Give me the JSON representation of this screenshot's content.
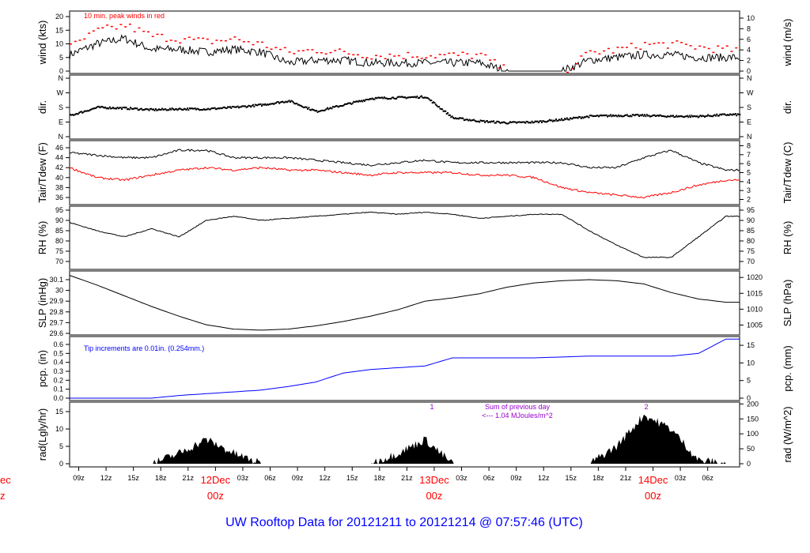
{
  "title": "UW Rooftop Data for 20121211  to  20121214 @ 07:57:46  (UTC)",
  "chart_data": [
    {
      "type": "line",
      "ylabel": "wind (kts)",
      "ylabel_right": "wind (m/s)",
      "ylim": [
        0,
        20
      ],
      "yticks": [
        0,
        5,
        10,
        15,
        20
      ],
      "yticks_right": [
        0,
        2,
        4,
        6,
        8,
        10
      ],
      "annotation": "10 min. peak winds in red",
      "series": [
        {
          "values": [
            6,
            10,
            12,
            8,
            8,
            7,
            8,
            7,
            3,
            4,
            4,
            3,
            3,
            3,
            3,
            3,
            0,
            0,
            0,
            4,
            5,
            6,
            6,
            5,
            5
          ],
          "color": "#000000"
        },
        {
          "values": [
            9,
            15,
            17,
            13,
            12,
            11,
            12,
            10,
            7,
            8,
            7,
            6,
            6,
            6,
            6,
            6,
            0,
            0,
            0,
            7,
            8,
            10,
            10,
            9,
            8
          ],
          "color": "#ff0000",
          "style": "points"
        }
      ]
    },
    {
      "type": "scatter",
      "ylabel": "dir.",
      "ylabel_right": "dir.",
      "yticks": [
        "N",
        "E",
        "S",
        "W",
        "N"
      ],
      "ylim": [
        0,
        360
      ],
      "series": [
        {
          "values": [
            135,
            185,
            180,
            170,
            175,
            175,
            185,
            200,
            225,
            160,
            200,
            240,
            245,
            250,
            120,
            100,
            90,
            95,
            110,
            130,
            135,
            135,
            130,
            130,
            140
          ],
          "color": "#000000"
        }
      ]
    },
    {
      "type": "line",
      "ylabel": "Tair/Tdew (F)",
      "ylabel_right": "Tair/Tdew (C)",
      "ylim": [
        36,
        46
      ],
      "yticks": [
        36,
        38,
        40,
        42,
        44,
        46
      ],
      "yticks_right": [
        2,
        3,
        4,
        5,
        6,
        7,
        8
      ],
      "series": [
        {
          "values": [
            45,
            44.5,
            44,
            44,
            45.5,
            45.5,
            44,
            44,
            44,
            43.5,
            43,
            42.5,
            43,
            43.5,
            43,
            43,
            43,
            43,
            43,
            42,
            42,
            44,
            45.5,
            43,
            41.5
          ],
          "color": "#000000"
        },
        {
          "values": [
            42,
            40,
            39.5,
            40.5,
            41.5,
            42,
            41.5,
            42,
            41.5,
            41.5,
            41,
            40.5,
            41,
            41,
            41,
            40.5,
            40.5,
            40,
            38,
            37,
            36.5,
            36,
            37,
            38.5,
            39.5
          ],
          "color": "#ff0000"
        }
      ]
    },
    {
      "type": "line",
      "ylabel": "RH (%)",
      "ylabel_right": "RH (%)",
      "ylim": [
        70,
        95
      ],
      "yticks": [
        70,
        75,
        80,
        85,
        90,
        95
      ],
      "yticks_right": [
        70,
        75,
        80,
        85,
        90,
        95
      ],
      "series": [
        {
          "values": [
            89,
            85,
            82,
            86,
            82,
            90,
            92,
            90,
            91,
            92,
            93,
            94,
            93,
            94,
            93,
            91,
            92,
            93,
            93,
            85,
            78,
            72,
            72,
            82,
            92
          ],
          "color": "#000000"
        }
      ]
    },
    {
      "type": "line",
      "ylabel": "SLP (inHg)",
      "ylabel_right": "SLP (hPa)",
      "ylim": [
        29.6,
        30.1
      ],
      "yticks": [
        29.6,
        29.7,
        29.8,
        29.9,
        30.0,
        30.1
      ],
      "yticks_right": [
        1005,
        1010,
        1015,
        1020
      ],
      "series": [
        {
          "values": [
            30.14,
            30.05,
            29.95,
            29.85,
            29.76,
            29.68,
            29.64,
            29.63,
            29.64,
            29.67,
            29.71,
            29.76,
            29.82,
            29.9,
            29.93,
            29.97,
            30.03,
            30.07,
            30.09,
            30.1,
            30.09,
            30.06,
            29.98,
            29.92,
            29.89
          ],
          "color": "#000000"
        }
      ]
    },
    {
      "type": "line",
      "ylabel": "pcp. (in)",
      "ylabel_right": "pcp. (mm)",
      "ylim": [
        0,
        0.6
      ],
      "yticks": [
        "0.0",
        "0.1",
        "0.2",
        "0.3",
        "0.4",
        "0.5",
        "0.6"
      ],
      "yticks_right": [
        0,
        5,
        10,
        15
      ],
      "annotation": "Tip increments are 0.01in. (0.254mm.)",
      "series": [
        {
          "values": [
            0,
            0,
            0,
            0,
            0.03,
            0.05,
            0.07,
            0.09,
            0.13,
            0.18,
            0.28,
            0.32,
            0.34,
            0.36,
            0.45,
            0.45,
            0.45,
            0.45,
            0.46,
            0.47,
            0.47,
            0.47,
            0.47,
            0.5,
            0.66
          ],
          "color": "#0000ff"
        }
      ]
    },
    {
      "type": "area",
      "ylabel": "rad(Lgly/hr)",
      "ylabel_right": "rad (W/m^2)",
      "ylim": [
        0,
        15
      ],
      "yticks": [
        0,
        5,
        10,
        15
      ],
      "yticks_right": [
        0,
        50,
        100,
        150,
        200
      ],
      "annotations": [
        "Sum of previous day",
        "<--- 1.04 MJoules/m^2",
        "1",
        "2"
      ],
      "series": [
        {
          "values": [
            0,
            0,
            0,
            0,
            3,
            7,
            3,
            0,
            0,
            0,
            0,
            0,
            3,
            7,
            0,
            0,
            0,
            0,
            0,
            0,
            5,
            14,
            10,
            1,
            0
          ],
          "color": "#000000"
        }
      ]
    }
  ],
  "x": {
    "start": "2012-12-11 08z",
    "step_hours": 3,
    "ticks": [
      "09z",
      "12z",
      "15z",
      "18z",
      "21z",
      "12Dec|00z",
      "03z",
      "06z",
      "09z",
      "12z",
      "15z",
      "18z",
      "21z",
      "13Dec|00z",
      "03z",
      "06z",
      "09z",
      "12z",
      "15z",
      "18z",
      "21z",
      "14Dec|00z",
      "03z",
      "06z"
    ],
    "left_cut_label": [
      "ec",
      "z"
    ],
    "day_color": "#ff0000"
  }
}
